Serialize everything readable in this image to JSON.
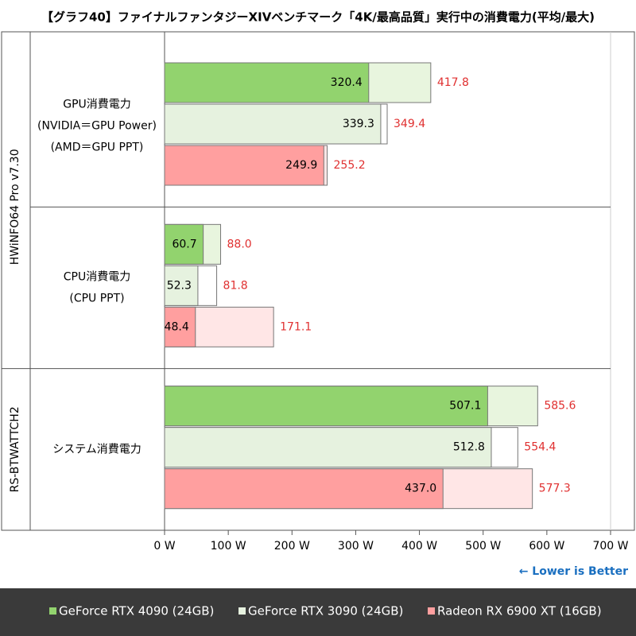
{
  "chart_data": {
    "type": "bar",
    "title": "【グラフ40】ファイナルファンタジーXIVベンチマーク「4K/最高品質」実行中の消費電力(平均/最大)",
    "categories": [
      [
        "GPU消費電力",
        "(NVIDIA＝GPU Power)",
        "(AMD＝GPU PPT)"
      ],
      [
        "CPU消費電力",
        "(CPU PPT)"
      ],
      [
        "システム消費電力"
      ]
    ],
    "category_groups": [
      {
        "label": "HWiNFO64 Pro v7.30",
        "span": 2
      },
      {
        "label": "RS-BTWATTCH2",
        "span": 1
      }
    ],
    "series": [
      {
        "name": "GeForce RTX 4090 (24GB)",
        "color": "#92d36e",
        "max_color": "#e8f5de",
        "values": [
          320.4,
          60.7,
          507.1
        ],
        "value_labels": [
          "320.4",
          "60.7",
          "507.1"
        ],
        "max_values": [
          417.8,
          88.0,
          585.6
        ],
        "max_value_labels": [
          "417.8",
          "88.0",
          "585.6"
        ]
      },
      {
        "name": "GeForce RTX 3090 (24GB)",
        "color": "#e6f2df",
        "max_color": "#ffffff",
        "values": [
          339.3,
          52.3,
          512.8
        ],
        "value_labels": [
          "339.3",
          "52.3",
          "512.8"
        ],
        "max_values": [
          349.4,
          81.8,
          554.4
        ],
        "max_value_labels": [
          "349.4",
          "81.8",
          "554.4"
        ]
      },
      {
        "name": "Radeon RX 6900 XT (16GB)",
        "color": "#ff9f9f",
        "max_color": "#ffe6e6",
        "values": [
          249.9,
          48.4,
          437.0
        ],
        "value_labels": [
          "249.9",
          "48.4",
          "437.0"
        ],
        "max_values": [
          255.2,
          171.1,
          577.3
        ],
        "max_value_labels": [
          "255.2",
          "171.1",
          "577.3"
        ]
      }
    ],
    "max_label_color": "#e03030",
    "xlim": [
      0,
      700
    ],
    "xticks": [
      {
        "value": 0,
        "label": "0 W"
      },
      {
        "value": 100,
        "label": "100 W"
      },
      {
        "value": 200,
        "label": "200 W"
      },
      {
        "value": 300,
        "label": "300 W"
      },
      {
        "value": 400,
        "label": "400 W"
      },
      {
        "value": 500,
        "label": "500 W"
      },
      {
        "value": 600,
        "label": "600 W"
      },
      {
        "value": 700,
        "label": "700 W"
      }
    ],
    "annotation": "← Lower is Better"
  }
}
